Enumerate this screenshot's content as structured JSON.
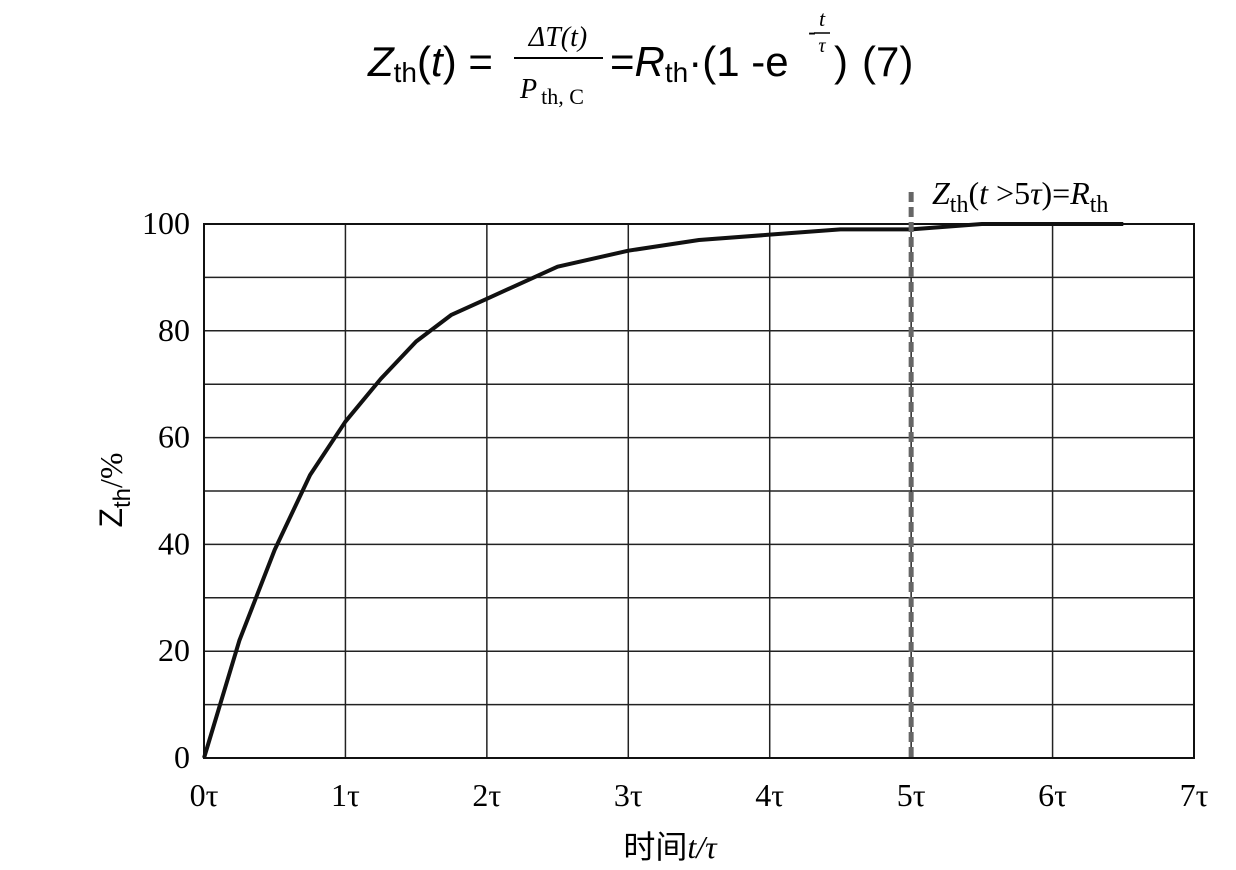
{
  "formula": {
    "lhs": [
      "Z",
      "th",
      "(",
      "t",
      ") ="
    ],
    "numerator": "ΔT(t)",
    "denominator": [
      "P",
      "th, C"
    ],
    "rhs": [
      "=",
      "R",
      "th",
      "·(1 -e"
    ],
    "exponent": {
      "sign": "-",
      "numerator": "t",
      "denominator": "τ"
    },
    "close": ")",
    "number": "(7)"
  },
  "chart_data": {
    "type": "line",
    "x": [
      0,
      0.25,
      0.5,
      0.75,
      1,
      1.25,
      1.5,
      1.75,
      2,
      2.5,
      3,
      3.5,
      4,
      4.5,
      5,
      5.5,
      6,
      6.5
    ],
    "values": [
      0,
      22,
      39,
      53,
      63,
      71,
      78,
      83,
      86,
      92,
      95,
      97,
      98,
      99,
      99,
      100,
      100,
      100
    ],
    "color": "#111111",
    "xlim": [
      0,
      7
    ],
    "xticks": [
      {
        "value": 0,
        "label": "0τ"
      },
      {
        "value": 1,
        "label": "1τ"
      },
      {
        "value": 2,
        "label": "2τ"
      },
      {
        "value": 3,
        "label": "3τ"
      },
      {
        "value": 4,
        "label": "4τ"
      },
      {
        "value": 5,
        "label": "5τ"
      },
      {
        "value": 6,
        "label": "6τ"
      },
      {
        "value": 7,
        "label": "7τ"
      }
    ],
    "ylim": [
      0,
      100
    ],
    "yticks": [
      0,
      20,
      40,
      60,
      80,
      100
    ],
    "minor_yticks": [
      10,
      30,
      50,
      70,
      90
    ],
    "grid": true,
    "y_label": [
      "Z",
      "th",
      "/%"
    ],
    "x_label": [
      "时间",
      "t",
      "/τ"
    ],
    "reference_line": {
      "x": 5,
      "color": "#666666",
      "label": [
        "Z",
        "th",
        "(",
        "t",
        " >5",
        "τ",
        ")=",
        "R",
        "th"
      ]
    }
  }
}
